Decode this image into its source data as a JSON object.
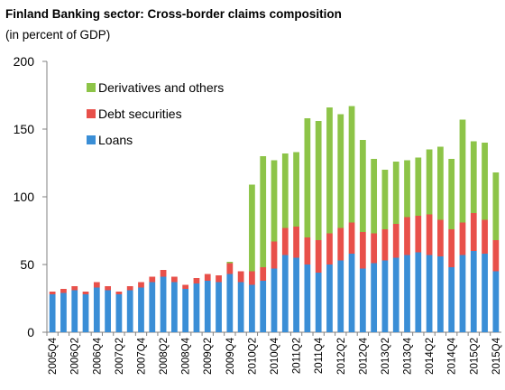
{
  "header": {
    "title": "Finland Banking sector: Cross-border claims composition",
    "subtitle": "(in percent of GDP)"
  },
  "colors": {
    "loans": "#3a8ed6",
    "debt": "#e8504a",
    "derivatives": "#8dc448",
    "axis": "#808080"
  },
  "chart_data": {
    "type": "bar",
    "stacked": true,
    "title": "Finland Banking sector: Cross-border claims composition",
    "subtitle": "(in percent of GDP)",
    "ylim": [
      0,
      200
    ],
    "yticks": [
      0,
      50,
      100,
      150,
      200
    ],
    "grid": false,
    "legend_position": "top-left",
    "categories": [
      "2005Q4",
      "2006Q1",
      "2006Q2",
      "2006Q3",
      "2006Q4",
      "2007Q1",
      "2007Q2",
      "2007Q3",
      "2007Q4",
      "2008Q1",
      "2008Q2",
      "2008Q3",
      "2008Q4",
      "2009Q1",
      "2009Q2",
      "2009Q3",
      "2009Q4",
      "2010Q1",
      "2010Q2",
      "2010Q3",
      "2010Q4",
      "2011Q1",
      "2011Q2",
      "2011Q3",
      "2011Q4",
      "2012Q1",
      "2012Q2",
      "2012Q3",
      "2012Q4",
      "2013Q1",
      "2013Q2",
      "2013Q3",
      "2013Q4",
      "2014Q1",
      "2014Q2",
      "2014Q3",
      "2014Q4",
      "2015Q1",
      "2015Q2",
      "2015Q3",
      "2015Q4"
    ],
    "tick_labels": [
      "2005Q4",
      "2006Q2",
      "2006Q4",
      "2007Q2",
      "2007Q4",
      "2008Q2",
      "2008Q4",
      "2009Q2",
      "2009Q4",
      "2010Q2",
      "2010Q4",
      "2011Q2",
      "2011Q4",
      "2012Q2",
      "2012Q4",
      "2013Q2",
      "2013Q4",
      "2014Q2",
      "2014Q4",
      "2015Q2",
      "2015Q4"
    ],
    "series": [
      {
        "name": "Loans",
        "color_key": "loans",
        "values": [
          28,
          29,
          31,
          28,
          33,
          31,
          28,
          31,
          33,
          37,
          41,
          37,
          32,
          36,
          38,
          37,
          43,
          37,
          35,
          38,
          47,
          57,
          55,
          50,
          44,
          50,
          53,
          58,
          47,
          51,
          53,
          55,
          57,
          59,
          57,
          56,
          48,
          57,
          60,
          58,
          45
        ]
      },
      {
        "name": "Debt securities",
        "color_key": "debt",
        "values": [
          2,
          3,
          3,
          2,
          4,
          3,
          2,
          3,
          4,
          4,
          5,
          4,
          3,
          4,
          5,
          5,
          8,
          8,
          10,
          10,
          20,
          20,
          23,
          20,
          24,
          23,
          24,
          23,
          27,
          22,
          23,
          25,
          28,
          27,
          30,
          27,
          28,
          24,
          28,
          25,
          23
        ]
      },
      {
        "name": "Derivatives and others",
        "color_key": "derivatives",
        "values": [
          0,
          0,
          0,
          0,
          0,
          0,
          0,
          0,
          0,
          0,
          0,
          0,
          0,
          0,
          0,
          0,
          1,
          0,
          64,
          82,
          60,
          55,
          55,
          88,
          88,
          93,
          84,
          86,
          68,
          55,
          44,
          46,
          42,
          43,
          48,
          54,
          52,
          76,
          53,
          57,
          50
        ]
      }
    ]
  }
}
